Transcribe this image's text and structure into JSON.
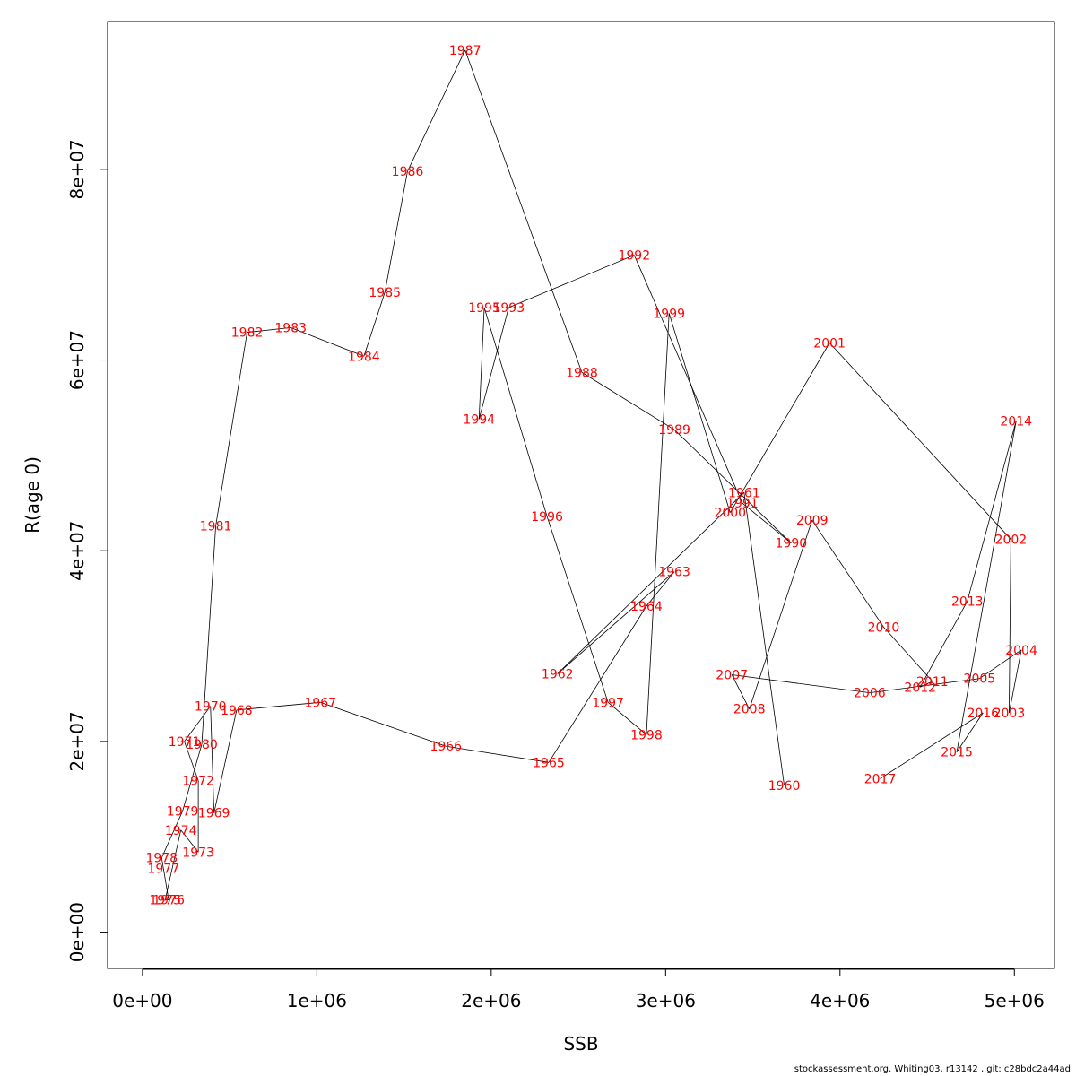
{
  "chart_data": {
    "type": "line",
    "xlabel": "SSB",
    "ylabel": "R(age 0)",
    "xlim": [
      -200000,
      5230000
    ],
    "ylim": [
      -3800000,
      95500000
    ],
    "xticks": [
      0,
      1000000,
      2000000,
      3000000,
      4000000,
      5000000
    ],
    "xtick_labels": [
      "0e+00",
      "1e+06",
      "2e+06",
      "3e+06",
      "4e+06",
      "5e+06"
    ],
    "yticks": [
      0,
      20000000,
      40000000,
      60000000,
      80000000
    ],
    "ytick_labels": [
      "0e+00",
      "2e+07",
      "4e+07",
      "6e+07",
      "8e+07"
    ],
    "line_color": "#000000",
    "label_color": "#ff0000",
    "points": [
      {
        "label": "1960",
        "ssb": 3680000,
        "r": 15400000
      },
      {
        "label": "1961",
        "ssb": 3450000,
        "r": 46100000
      },
      {
        "label": "1962",
        "ssb": 2380000,
        "r": 27100000
      },
      {
        "label": "1963",
        "ssb": 3050000,
        "r": 37800000
      },
      {
        "label": "1964",
        "ssb": 2890000,
        "r": 34200000
      },
      {
        "label": "1965",
        "ssb": 2330000,
        "r": 17800000
      },
      {
        "label": "1966",
        "ssb": 1740000,
        "r": 19500000
      },
      {
        "label": "1967",
        "ssb": 1020000,
        "r": 24100000
      },
      {
        "label": "1968",
        "ssb": 540000,
        "r": 23300000
      },
      {
        "label": "1969",
        "ssb": 410000,
        "r": 12500000
      },
      {
        "label": "1970",
        "ssb": 390000,
        "r": 23700000
      },
      {
        "label": "1971",
        "ssb": 240000,
        "r": 20000000
      },
      {
        "label": "1972",
        "ssb": 320000,
        "r": 15900000
      },
      {
        "label": "1973",
        "ssb": 320000,
        "r": 8400000
      },
      {
        "label": "1974",
        "ssb": 220000,
        "r": 10700000
      },
      {
        "label": "1975",
        "ssb": 130000,
        "r": 3400000
      },
      {
        "label": "1976",
        "ssb": 150000,
        "r": 3400000
      },
      {
        "label": "1977",
        "ssb": 120000,
        "r": 6700000
      },
      {
        "label": "1978",
        "ssb": 110000,
        "r": 7800000
      },
      {
        "label": "1979",
        "ssb": 230000,
        "r": 12700000
      },
      {
        "label": "1980",
        "ssb": 340000,
        "r": 19700000
      },
      {
        "label": "1981",
        "ssb": 420000,
        "r": 42600000
      },
      {
        "label": "1982",
        "ssb": 600000,
        "r": 62900000
      },
      {
        "label": "1983",
        "ssb": 850000,
        "r": 63400000
      },
      {
        "label": "1984",
        "ssb": 1270000,
        "r": 60400000
      },
      {
        "label": "1985",
        "ssb": 1390000,
        "r": 67100000
      },
      {
        "label": "1986",
        "ssb": 1520000,
        "r": 79800000
      },
      {
        "label": "1987",
        "ssb": 1850000,
        "r": 92500000
      },
      {
        "label": "1988",
        "ssb": 2520000,
        "r": 58700000
      },
      {
        "label": "1989",
        "ssb": 3050000,
        "r": 52700000
      },
      {
        "label": "1990",
        "ssb": 3720000,
        "r": 40800000
      },
      {
        "label": "1991",
        "ssb": 3440000,
        "r": 45000000
      },
      {
        "label": "1992",
        "ssb": 2820000,
        "r": 71000000
      },
      {
        "label": "1993",
        "ssb": 2100000,
        "r": 65500000
      },
      {
        "label": "1994",
        "ssb": 1930000,
        "r": 53800000
      },
      {
        "label": "1995",
        "ssb": 1960000,
        "r": 65500000
      },
      {
        "label": "1996",
        "ssb": 2320000,
        "r": 43600000
      },
      {
        "label": "1997",
        "ssb": 2670000,
        "r": 24100000
      },
      {
        "label": "1998",
        "ssb": 2890000,
        "r": 20700000
      },
      {
        "label": "1999",
        "ssb": 3020000,
        "r": 64900000
      },
      {
        "label": "2000",
        "ssb": 3370000,
        "r": 44000000
      },
      {
        "label": "2001",
        "ssb": 3940000,
        "r": 61800000
      },
      {
        "label": "2002",
        "ssb": 4980000,
        "r": 41200000
      },
      {
        "label": "2003",
        "ssb": 4970000,
        "r": 23000000
      },
      {
        "label": "2004",
        "ssb": 5040000,
        "r": 29600000
      },
      {
        "label": "2005",
        "ssb": 4800000,
        "r": 26600000
      },
      {
        "label": "2006",
        "ssb": 4170000,
        "r": 25100000
      },
      {
        "label": "2007",
        "ssb": 3380000,
        "r": 27000000
      },
      {
        "label": "2008",
        "ssb": 3480000,
        "r": 23400000
      },
      {
        "label": "2009",
        "ssb": 3840000,
        "r": 43200000
      },
      {
        "label": "2010",
        "ssb": 4250000,
        "r": 32000000
      },
      {
        "label": "2011",
        "ssb": 4530000,
        "r": 26300000
      },
      {
        "label": "2012",
        "ssb": 4460000,
        "r": 25700000
      },
      {
        "label": "2013",
        "ssb": 4730000,
        "r": 34700000
      },
      {
        "label": "2014",
        "ssb": 5010000,
        "r": 53600000
      },
      {
        "label": "2015",
        "ssb": 4670000,
        "r": 18900000
      },
      {
        "label": "2016",
        "ssb": 4820000,
        "r": 23000000
      },
      {
        "label": "2017",
        "ssb": 4230000,
        "r": 16100000
      }
    ]
  },
  "footer": "stockassessment.org, Whiting03, r13142 , git: c28bdc2a44ad"
}
